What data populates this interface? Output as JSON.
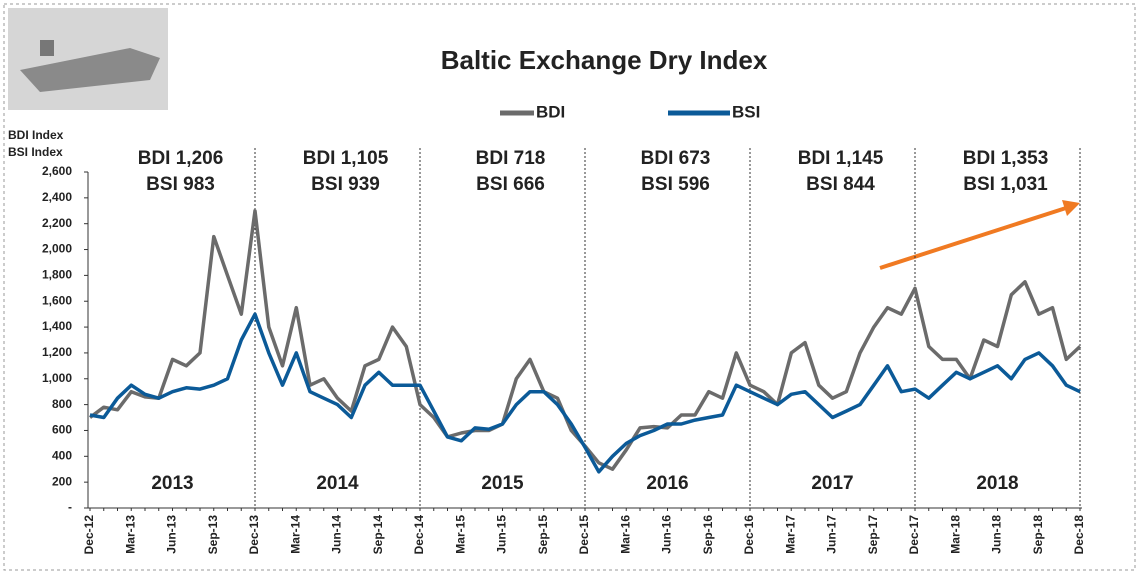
{
  "chart_data": {
    "type": "line",
    "title": "Baltic Exchange Dry Index",
    "y_axis_label": [
      "BDI Index",
      "BSI Index"
    ],
    "categories": [
      "Dec-12",
      null,
      null,
      "Mar-13",
      null,
      null,
      "Jun-13",
      null,
      null,
      "Sep-13",
      null,
      null,
      "Dec-13",
      null,
      null,
      "Mar-14",
      null,
      null,
      "Jun-14",
      null,
      null,
      "Sep-14",
      null,
      null,
      "Dec-14",
      null,
      null,
      "Mar-15",
      null,
      null,
      "Jun-15",
      null,
      null,
      "Sep-15",
      null,
      null,
      "Dec-15",
      null,
      null,
      "Mar-16",
      null,
      null,
      "Jun-16",
      null,
      null,
      "Sep-16",
      null,
      null,
      "Dec-16",
      null,
      null,
      "Mar-17",
      null,
      null,
      "Jun-17",
      null,
      null,
      "Sep-17",
      null,
      null,
      "Dec-17",
      null,
      null,
      "Mar-18",
      null,
      null,
      "Jun-18",
      null,
      null,
      "Sep-18",
      null,
      null,
      "Dec-18"
    ],
    "series": [
      {
        "name": "BDI",
        "color": "#6b6b6b",
        "values": [
          700,
          780,
          760,
          900,
          860,
          850,
          1150,
          1100,
          1200,
          2100,
          1800,
          1500,
          2300,
          1400,
          1100,
          1550,
          950,
          1000,
          850,
          750,
          1100,
          1150,
          1400,
          1250,
          800,
          700,
          550,
          580,
          600,
          600,
          650,
          1000,
          1150,
          900,
          850,
          600,
          480,
          350,
          300,
          450,
          620,
          630,
          620,
          720,
          720,
          900,
          850,
          1200,
          950,
          900,
          800,
          1200,
          1280,
          950,
          850,
          900,
          1200,
          1400,
          1550,
          1500,
          1700,
          1250,
          1150,
          1150,
          1000,
          1300,
          1250,
          1650,
          1750,
          1500,
          1550,
          1150,
          1250
        ]
      },
      {
        "name": "BSI",
        "color": "#0b5a98",
        "values": [
          720,
          700,
          850,
          950,
          880,
          850,
          900,
          930,
          920,
          950,
          1000,
          1300,
          1500,
          1200,
          950,
          1200,
          900,
          850,
          800,
          700,
          950,
          1050,
          950,
          950,
          950,
          750,
          550,
          520,
          620,
          610,
          650,
          800,
          900,
          900,
          800,
          650,
          470,
          280,
          400,
          500,
          560,
          600,
          650,
          650,
          680,
          700,
          720,
          950,
          900,
          850,
          800,
          880,
          900,
          800,
          700,
          750,
          800,
          950,
          1100,
          900,
          920,
          850,
          950,
          1050,
          1000,
          1050,
          1100,
          1000,
          1150,
          1200,
          1100,
          950,
          900
        ]
      }
    ],
    "annotations": [
      {
        "bdi": "BDI 1,206",
        "bsi": "BSI 983",
        "year": "2013"
      },
      {
        "bdi": "BDI 1,105",
        "bsi": "BSI 939",
        "year": "2014"
      },
      {
        "bdi": "BDI 718",
        "bsi": "BSI 666",
        "year": "2015"
      },
      {
        "bdi": "BDI 673",
        "bsi": "BSI 596",
        "year": "2016"
      },
      {
        "bdi": "BDI 1,145",
        "bsi": "BSI 844",
        "year": "2017"
      },
      {
        "bdi": "BDI 1,353",
        "bsi": "BSI 1,031",
        "year": "2018"
      }
    ],
    "ylim": [
      0,
      2600
    ],
    "yticks": [
      {
        "value": 0,
        "label": "-"
      },
      200,
      400,
      600,
      800,
      {
        "value": 1000,
        "label": "1,000"
      },
      {
        "value": 1200,
        "label": "1,200"
      },
      {
        "value": 1400,
        "label": "1,400"
      },
      {
        "value": 1600,
        "label": "1,600"
      },
      {
        "value": 1800,
        "label": "1,800"
      },
      {
        "value": 2000,
        "label": "2,000"
      },
      {
        "value": 2200,
        "label": "2,200"
      },
      {
        "value": 2400,
        "label": "2,400"
      },
      {
        "value": 2600,
        "label": "2,600"
      }
    ],
    "legend": "top"
  }
}
